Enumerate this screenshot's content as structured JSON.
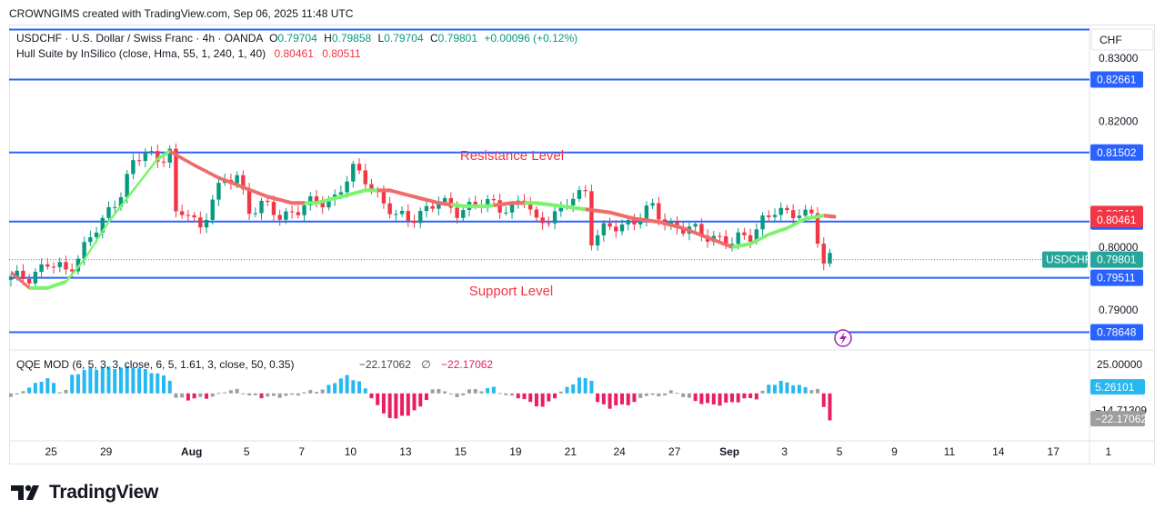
{
  "credit": "CROWNGIMS created with TradingView.com, Sep 06, 2025 11:48 UTC",
  "brand": "TradingView",
  "currency": "CHF",
  "colors": {
    "up": "#089981",
    "down": "#f23645",
    "level": "#2962ff",
    "hull_up": "#7cf36e",
    "hull_down": "#f06b6b",
    "qqe_up": "#26b8f0",
    "qqe_down": "#e91e63",
    "qqe_neutral": "#9e9e9e",
    "price_tag": "#26a69a",
    "text_red": "#f23645"
  },
  "legend": {
    "symbol": "USDCHF · U.S. Dollar / Swiss Franc · 4h · OANDA",
    "o_label": "O",
    "o": "0.79704",
    "h_label": "H",
    "h": "0.79858",
    "l_label": "L",
    "l": "0.79704",
    "c_label": "C",
    "c": "0.79801",
    "change": "+0.00096 (+0.12%)",
    "indicator": "Hull Suite by InSilico (close, Hma, 55, 1, 240, 1, 40)",
    "ind_v1": "0.80461",
    "ind_v2": "0.80511",
    "qqe": "QQE MOD (6, 5, 3, 3, close, 6, 5, 1.61, 3, close, 50, 0.35)",
    "qqe_v1": "−22.17062",
    "qqe_sep": "∅",
    "qqe_v2": "−22.17062"
  },
  "annotations": {
    "resistance": "Resistance Level",
    "support": "Support Level"
  },
  "chart_data": {
    "type": "candlestick",
    "symbol": "USDCHF",
    "timeframe": "4h",
    "ylim": [
      0.7838,
      0.8352
    ],
    "y_ticks": [
      "0.83000",
      "0.82000",
      "0.80000",
      "0.79000"
    ],
    "y_tick_values": [
      0.83,
      0.82,
      0.8,
      0.79
    ],
    "x_ticks": [
      {
        "label": "25",
        "i": 3
      },
      {
        "label": "29",
        "i": 12
      },
      {
        "label": "Aug",
        "i": 26
      },
      {
        "label": "5",
        "i": 35
      },
      {
        "label": "7",
        "i": 44
      },
      {
        "label": "10",
        "i": 52
      },
      {
        "label": "13",
        "i": 61
      },
      {
        "label": "15",
        "i": 70
      },
      {
        "label": "19",
        "i": 79
      },
      {
        "label": "21",
        "i": 88
      },
      {
        "label": "24",
        "i": 96
      },
      {
        "label": "27",
        "i": 105
      },
      {
        "label": "Sep",
        "i": 114
      },
      {
        "label": "3",
        "i": 123
      },
      {
        "label": "5",
        "i": 132
      },
      {
        "label": "9",
        "i": 141
      },
      {
        "label": "11",
        "i": 150
      },
      {
        "label": "14",
        "i": 158
      },
      {
        "label": "17",
        "i": 167
      },
      {
        "label": "1",
        "i": 176
      }
    ],
    "horizontal_levels": [
      {
        "value": 0.83455,
        "label": ""
      },
      {
        "value": 0.82661,
        "label": "0.82661"
      },
      {
        "value": 0.81502,
        "label": "0.81502"
      },
      {
        "value": 0.80405,
        "label": "0.80405"
      },
      {
        "value": 0.79511,
        "label": "0.79511"
      },
      {
        "value": 0.78648,
        "label": "0.78648"
      }
    ],
    "last_price": 0.79801,
    "last_price_label": "0.79801",
    "hull_tags": [
      {
        "value": 0.80511,
        "label": "0.80511"
      },
      {
        "value": 0.80461,
        "label": "0.80461"
      }
    ],
    "close_anchors": [
      [
        0,
        0.7948
      ],
      [
        3,
        0.7955
      ],
      [
        6,
        0.7972
      ],
      [
        9,
        0.7962
      ],
      [
        12,
        0.8
      ],
      [
        15,
        0.804
      ],
      [
        18,
        0.809
      ],
      [
        20,
        0.813
      ],
      [
        22,
        0.815
      ],
      [
        24,
        0.814
      ],
      [
        26,
        0.8155
      ],
      [
        27,
        0.8045
      ],
      [
        29,
        0.8055
      ],
      [
        31,
        0.803
      ],
      [
        33,
        0.808
      ],
      [
        35,
        0.81
      ],
      [
        37,
        0.8115
      ],
      [
        39,
        0.806
      ],
      [
        41,
        0.8065
      ],
      [
        44,
        0.805
      ],
      [
        47,
        0.806
      ],
      [
        50,
        0.807
      ],
      [
        53,
        0.808
      ],
      [
        56,
        0.812
      ],
      [
        58,
        0.811
      ],
      [
        61,
        0.807
      ],
      [
        63,
        0.8045
      ],
      [
        66,
        0.805
      ],
      [
        68,
        0.806
      ],
      [
        70,
        0.807
      ],
      [
        73,
        0.806
      ],
      [
        76,
        0.8065
      ],
      [
        79,
        0.807
      ],
      [
        82,
        0.806
      ],
      [
        84,
        0.8075
      ],
      [
        86,
        0.804
      ],
      [
        88,
        0.805
      ],
      [
        90,
        0.8055
      ],
      [
        92,
        0.808
      ],
      [
        94,
        0.809
      ],
      [
        95,
        0.8015
      ],
      [
        97,
        0.8025
      ],
      [
        100,
        0.8035
      ],
      [
        103,
        0.805
      ],
      [
        105,
        0.806
      ],
      [
        107,
        0.804
      ],
      [
        110,
        0.803
      ],
      [
        113,
        0.802
      ],
      [
        116,
        0.8015
      ],
      [
        118,
        0.8005
      ],
      [
        121,
        0.802
      ],
      [
        123,
        0.8045
      ],
      [
        125,
        0.8055
      ],
      [
        127,
        0.805
      ],
      [
        129,
        0.806
      ],
      [
        131,
        0.805
      ],
      [
        133,
        0.797
      ],
      [
        134,
        0.798
      ]
    ],
    "hull_anchors": [
      [
        0,
        0.796
      ],
      [
        3,
        0.7935
      ],
      [
        6,
        0.7935
      ],
      [
        9,
        0.7945
      ],
      [
        12,
        0.798
      ],
      [
        16,
        0.804
      ],
      [
        20,
        0.809
      ],
      [
        24,
        0.814
      ],
      [
        26,
        0.8152
      ],
      [
        30,
        0.813
      ],
      [
        34,
        0.811
      ],
      [
        38,
        0.8095
      ],
      [
        42,
        0.808
      ],
      [
        46,
        0.807
      ],
      [
        50,
        0.807
      ],
      [
        54,
        0.808
      ],
      [
        58,
        0.809
      ],
      [
        62,
        0.809
      ],
      [
        66,
        0.808
      ],
      [
        70,
        0.807
      ],
      [
        74,
        0.8065
      ],
      [
        78,
        0.8065
      ],
      [
        82,
        0.807
      ],
      [
        86,
        0.807
      ],
      [
        90,
        0.8065
      ],
      [
        94,
        0.806
      ],
      [
        98,
        0.8055
      ],
      [
        102,
        0.8045
      ],
      [
        106,
        0.804
      ],
      [
        110,
        0.803
      ],
      [
        114,
        0.8015
      ],
      [
        118,
        0.8
      ],
      [
        121,
        0.8005
      ],
      [
        124,
        0.802
      ],
      [
        127,
        0.803
      ],
      [
        130,
        0.8045
      ],
      [
        133,
        0.805
      ],
      [
        135,
        0.8048
      ]
    ],
    "hull_color_segments": [
      {
        "from": 0,
        "to": 3,
        "dir": "down"
      },
      {
        "from": 3,
        "to": 26,
        "dir": "up"
      },
      {
        "from": 26,
        "to": 48,
        "dir": "down"
      },
      {
        "from": 48,
        "to": 60,
        "dir": "up"
      },
      {
        "from": 60,
        "to": 72,
        "dir": "down"
      },
      {
        "from": 72,
        "to": 79,
        "dir": "up"
      },
      {
        "from": 79,
        "to": 84,
        "dir": "down"
      },
      {
        "from": 84,
        "to": 94,
        "dir": "up"
      },
      {
        "from": 94,
        "to": 118,
        "dir": "down"
      },
      {
        "from": 118,
        "to": 133,
        "dir": "up"
      },
      {
        "from": 133,
        "to": 135,
        "dir": "down"
      }
    ],
    "qqe": {
      "ylim": [
        -40,
        35
      ],
      "y_ticks": [
        "25.00000"
      ],
      "y_tick_values": [
        25
      ],
      "tags": [
        {
          "value": 5.26101,
          "label": "5.26101",
          "color": "#26b8f0"
        },
        {
          "value": -14.71309,
          "label": "−14.71309",
          "color": ""
        },
        {
          "value": -22.17062,
          "label": "−22.17062",
          "color": "#9e9e9e"
        }
      ],
      "anchors": [
        [
          0,
          -3
        ],
        [
          1,
          -2
        ],
        [
          2,
          3
        ],
        [
          3,
          5
        ],
        [
          4,
          8
        ],
        [
          5,
          11
        ],
        [
          6,
          13
        ],
        [
          7,
          8
        ],
        [
          8,
          2
        ],
        [
          9,
          3
        ],
        [
          10,
          15
        ],
        [
          12,
          20
        ],
        [
          15,
          22
        ],
        [
          18,
          22
        ],
        [
          20,
          23
        ],
        [
          22,
          20
        ],
        [
          24,
          17
        ],
        [
          26,
          12
        ],
        [
          27,
          -4
        ],
        [
          29,
          -5
        ],
        [
          31,
          -4
        ],
        [
          33,
          -3
        ],
        [
          35,
          2
        ],
        [
          37,
          3
        ],
        [
          39,
          -2
        ],
        [
          41,
          -3
        ],
        [
          43,
          -3
        ],
        [
          46,
          -2
        ],
        [
          49,
          2
        ],
        [
          51,
          3
        ],
        [
          53,
          10
        ],
        [
          55,
          15
        ],
        [
          57,
          10
        ],
        [
          59,
          -3
        ],
        [
          61,
          -18
        ],
        [
          63,
          -22
        ],
        [
          65,
          -18
        ],
        [
          67,
          -12
        ],
        [
          69,
          3
        ],
        [
          71,
          3
        ],
        [
          73,
          -4
        ],
        [
          75,
          3
        ],
        [
          77,
          3
        ],
        [
          79,
          5
        ],
        [
          81,
          -2
        ],
        [
          83,
          -3
        ],
        [
          85,
          -8
        ],
        [
          87,
          -12
        ],
        [
          89,
          -3
        ],
        [
          91,
          5
        ],
        [
          93,
          13
        ],
        [
          95,
          12
        ],
        [
          96,
          -8
        ],
        [
          98,
          -12
        ],
        [
          100,
          -10
        ],
        [
          102,
          -8
        ],
        [
          104,
          -1
        ],
        [
          106,
          -3
        ],
        [
          108,
          2
        ],
        [
          110,
          -2
        ],
        [
          112,
          -7
        ],
        [
          115,
          -10
        ],
        [
          118,
          -8
        ],
        [
          120,
          -5
        ],
        [
          122,
          -4
        ],
        [
          124,
          7
        ],
        [
          126,
          10
        ],
        [
          128,
          8
        ],
        [
          130,
          5
        ],
        [
          132,
          3
        ],
        [
          133,
          -12
        ],
        [
          134,
          -22
        ]
      ]
    }
  }
}
